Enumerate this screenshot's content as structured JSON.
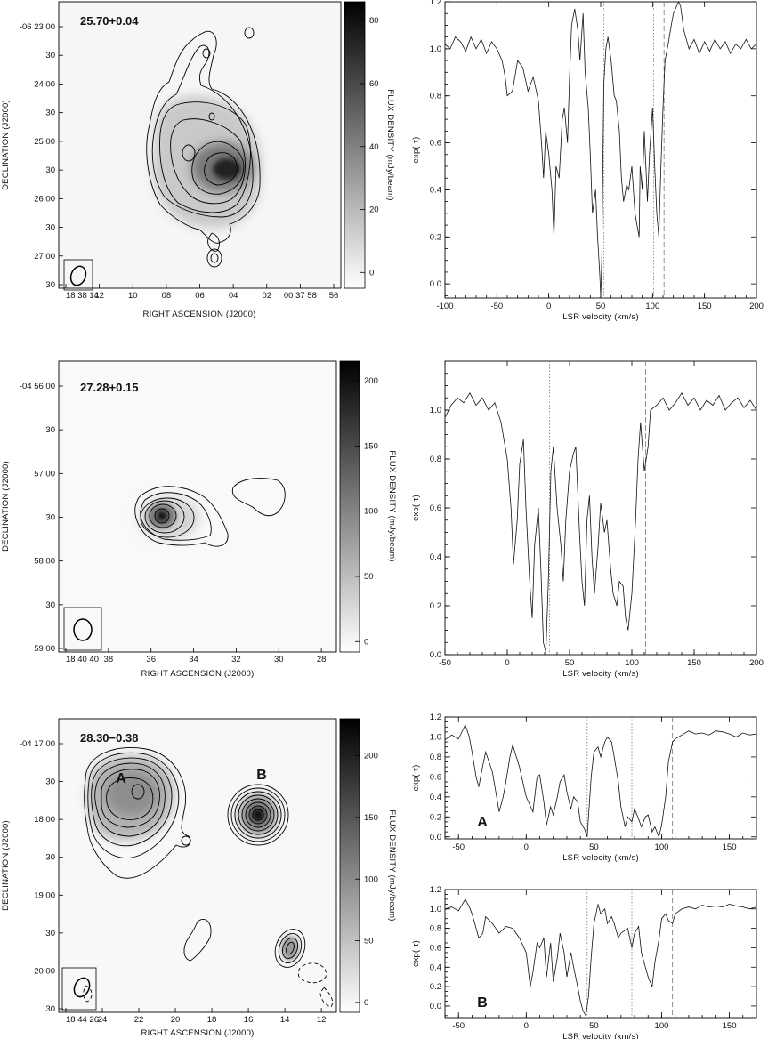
{
  "chart_data": [
    {
      "type": "heatmap",
      "id": "25.70+0.04",
      "title": "",
      "xlabel": "RIGHT ASCENSION (J2000)",
      "ylabel": "DECLINATION (J2000)",
      "colorbar_label": "FLUX DENSITY (mJy/beam)",
      "colorbar_range": [
        -5,
        86
      ],
      "colorbar_ticks": [
        "0",
        "20",
        "40",
        "60",
        "80"
      ],
      "x_tick_labels": [
        "18 38 14",
        "12",
        "10",
        "08",
        "06",
        "04",
        "02",
        "00 37 58",
        "56"
      ],
      "y_tick_labels": [
        "-06 23 00",
        "30",
        "24 00",
        "30",
        "25 00",
        "30",
        "26 00",
        "30",
        "27 00",
        "30"
      ],
      "peak_flux_mJy_per_beam": 82,
      "beam": "ellipse (lower-left box)"
    },
    {
      "type": "line",
      "source": "25.70+0.04",
      "xlabel": "LSR velocity (km/s)",
      "ylabel": "exp(-τ)",
      "xlim": [
        -100,
        200
      ],
      "ylim": [
        -0.06,
        1.2
      ],
      "x_ticks": [
        "-100",
        "-50",
        "0",
        "50",
        "100",
        "150",
        "200"
      ],
      "y_ticks": [
        "0.0",
        "0.2",
        "0.4",
        "0.6",
        "0.8",
        "1.0",
        "1.2"
      ],
      "dotted_lines_kms": [
        53,
        101
      ],
      "dashed_lines_kms": [
        111
      ],
      "series": [
        {
          "x": [
            -100,
            -95,
            -90,
            -85,
            -80,
            -75,
            -70,
            -65,
            -60,
            -55,
            -50,
            -45,
            -42,
            -40,
            -35,
            -30,
            -25,
            -20,
            -15,
            -10,
            -7,
            -5,
            -3,
            0,
            3,
            5,
            7,
            10,
            13,
            15,
            18,
            20,
            22,
            25,
            28,
            30,
            33,
            35,
            38,
            40,
            42,
            45,
            47,
            49,
            50,
            51,
            52,
            53,
            55,
            57,
            60,
            63,
            65,
            68,
            70,
            72,
            75,
            77,
            80,
            83,
            85,
            87,
            88,
            90,
            92,
            95,
            97,
            100,
            102,
            104,
            106,
            108,
            110,
            112,
            115,
            118,
            120,
            125,
            127,
            130,
            135,
            140,
            145,
            150,
            155,
            160,
            165,
            170,
            175,
            180,
            185,
            190,
            195,
            200
          ],
          "y": [
            1.02,
            1.0,
            1.05,
            1.03,
            0.99,
            1.05,
            1.0,
            1.04,
            0.98,
            1.03,
            1.0,
            0.95,
            0.88,
            0.8,
            0.82,
            0.95,
            0.92,
            0.82,
            0.88,
            0.78,
            0.6,
            0.45,
            0.65,
            0.55,
            0.4,
            0.2,
            0.5,
            0.45,
            0.7,
            0.75,
            0.6,
            0.88,
            1.1,
            1.17,
            1.08,
            0.95,
            1.15,
            0.9,
            0.75,
            0.55,
            0.3,
            0.4,
            0.2,
            0.05,
            -0.05,
            0.1,
            0.45,
            0.85,
            1.0,
            1.05,
            0.95,
            0.8,
            0.78,
            0.65,
            0.45,
            0.35,
            0.42,
            0.4,
            0.5,
            0.3,
            0.25,
            0.2,
            0.5,
            0.4,
            0.65,
            0.35,
            0.55,
            0.75,
            0.5,
            0.3,
            0.2,
            0.5,
            0.75,
            0.95,
            1.02,
            1.1,
            1.15,
            1.2,
            1.18,
            1.08,
            1.0,
            1.04,
            0.98,
            1.03,
            0.99,
            1.04,
            1.0,
            1.03,
            0.98,
            1.02,
            1.0,
            1.04,
            1.0,
            1.02
          ]
        }
      ]
    },
    {
      "type": "heatmap",
      "id": "27.28+0.15",
      "title": "",
      "xlabel": "RIGHT ASCENSION (J2000)",
      "ylabel": "DECLINATION (J2000)",
      "colorbar_label": "FLUX DENSITY (mJy/beam)",
      "colorbar_range": [
        -8,
        215
      ],
      "colorbar_ticks": [
        "0",
        "50",
        "100",
        "150",
        "200"
      ],
      "x_tick_labels": [
        "18 40 40",
        "38",
        "36",
        "34",
        "32",
        "30",
        "28"
      ],
      "y_tick_labels": [
        "-04 56 00",
        "30",
        "57 00",
        "30",
        "58 00",
        "30",
        "59 00"
      ],
      "peak_flux_mJy_per_beam": 210,
      "beam": "ellipse (lower-left box)"
    },
    {
      "type": "line",
      "source": "27.28+0.15",
      "xlabel": "LSR velocity (km/s)",
      "ylabel": "exp(-τ)",
      "xlim": [
        -50,
        200
      ],
      "ylim": [
        0.0,
        1.2
      ],
      "x_ticks": [
        "-50",
        "0",
        "50",
        "100",
        "150",
        "200"
      ],
      "y_ticks": [
        "0.0",
        "0.2",
        "0.4",
        "0.6",
        "0.8",
        "1.0"
      ],
      "dotted_lines_kms": [
        34
      ],
      "dashed_lines_kms": [
        111
      ],
      "series": [
        {
          "x": [
            -50,
            -45,
            -40,
            -35,
            -30,
            -25,
            -20,
            -15,
            -10,
            -5,
            0,
            3,
            5,
            8,
            10,
            13,
            15,
            18,
            20,
            22,
            25,
            27,
            29,
            31,
            33,
            35,
            37,
            40,
            43,
            45,
            47,
            50,
            53,
            55,
            58,
            60,
            62,
            64,
            66,
            68,
            70,
            73,
            75,
            78,
            80,
            83,
            85,
            88,
            90,
            93,
            95,
            97,
            100,
            103,
            105,
            107,
            110,
            113,
            115,
            120,
            125,
            130,
            135,
            140,
            145,
            150,
            155,
            160,
            165,
            170,
            175,
            180,
            185,
            190,
            195,
            200
          ],
          "y": [
            0.97,
            1.02,
            1.05,
            1.03,
            1.07,
            1.02,
            1.05,
            1.0,
            1.03,
            0.95,
            0.8,
            0.6,
            0.37,
            0.55,
            0.78,
            0.88,
            0.6,
            0.3,
            0.15,
            0.45,
            0.6,
            0.35,
            0.05,
            0.01,
            0.3,
            0.75,
            0.85,
            0.6,
            0.45,
            0.3,
            0.55,
            0.75,
            0.82,
            0.85,
            0.5,
            0.3,
            0.2,
            0.55,
            0.65,
            0.4,
            0.25,
            0.45,
            0.62,
            0.5,
            0.55,
            0.35,
            0.25,
            0.2,
            0.3,
            0.28,
            0.15,
            0.1,
            0.25,
            0.55,
            0.8,
            0.95,
            0.75,
            0.85,
            1.0,
            1.02,
            1.05,
            1.0,
            1.03,
            1.07,
            1.02,
            1.05,
            1.0,
            1.04,
            1.02,
            1.06,
            1.0,
            1.03,
            1.05,
            1.01,
            1.04,
            1.0
          ]
        }
      ]
    },
    {
      "type": "heatmap",
      "id": "28.30−0.38",
      "title": "",
      "xlabel": "RIGHT ASCENSION (J2000)",
      "ylabel": "DECLINATION (J2000)",
      "colorbar_label": "FLUX DENSITY (mJy/beam)",
      "colorbar_range": [
        -8,
        230
      ],
      "colorbar_ticks": [
        "0",
        "50",
        "100",
        "150",
        "200"
      ],
      "x_tick_labels": [
        "18 44 26",
        "24",
        "22",
        "20",
        "18",
        "16",
        "14",
        "12"
      ],
      "y_tick_labels": [
        "-04 17 00",
        "30",
        "18 00",
        "30",
        "19 00",
        "30",
        "20 00",
        "30"
      ],
      "component_labels": [
        "A",
        "B"
      ],
      "peak_flux_mJy_per_beam": 225,
      "beam": "ellipse (lower-left box)"
    },
    {
      "type": "line",
      "source": "28.30−0.38 A",
      "panel_label": "A",
      "xlabel": "LSR velocity (km/s)",
      "ylabel": "exp(-τ)",
      "xlim": [
        -60,
        170
      ],
      "ylim": [
        -0.02,
        1.2
      ],
      "x_ticks": [
        "-50",
        "0",
        "50",
        "100",
        "150"
      ],
      "y_ticks": [
        "0.0",
        "0.2",
        "0.4",
        "0.6",
        "0.8",
        "1.0",
        "1.2"
      ],
      "dotted_lines_kms": [
        45,
        78
      ],
      "dashed_lines_kms": [
        108
      ],
      "series": [
        {
          "x": [
            -60,
            -55,
            -50,
            -45,
            -42,
            -40,
            -37,
            -35,
            -33,
            -30,
            -25,
            -20,
            -17,
            -15,
            -12,
            -10,
            -5,
            0,
            5,
            8,
            10,
            13,
            15,
            18,
            20,
            23,
            25,
            28,
            30,
            33,
            35,
            38,
            40,
            43,
            45,
            48,
            50,
            53,
            55,
            58,
            60,
            63,
            65,
            68,
            70,
            73,
            75,
            78,
            80,
            83,
            85,
            88,
            90,
            93,
            95,
            98,
            100,
            103,
            105,
            108,
            110,
            115,
            120,
            125,
            130,
            135,
            140,
            145,
            150,
            155,
            160,
            165,
            170
          ],
          "y": [
            0.97,
            1.02,
            0.98,
            1.12,
            1.0,
            0.85,
            0.6,
            0.5,
            0.65,
            0.85,
            0.65,
            0.25,
            0.4,
            0.55,
            0.8,
            0.92,
            0.7,
            0.4,
            0.25,
            0.6,
            0.62,
            0.35,
            0.12,
            0.3,
            0.22,
            0.4,
            0.55,
            0.62,
            0.45,
            0.28,
            0.4,
            0.35,
            0.15,
            0.08,
            0.0,
            0.6,
            0.85,
            0.9,
            0.8,
            0.95,
            1.0,
            0.95,
            0.8,
            0.55,
            0.3,
            0.1,
            0.2,
            0.15,
            0.28,
            0.18,
            0.1,
            0.2,
            0.22,
            0.05,
            0.1,
            0.0,
            0.12,
            0.4,
            0.75,
            0.95,
            0.98,
            1.02,
            1.06,
            1.03,
            1.04,
            1.02,
            1.06,
            1.05,
            1.03,
            1.0,
            1.04,
            1.02,
            1.03
          ]
        }
      ]
    },
    {
      "type": "line",
      "source": "28.30−0.38 B",
      "panel_label": "B",
      "xlabel": "LSR velocity (km/s)",
      "ylabel": "exp(-τ)",
      "xlim": [
        -60,
        170
      ],
      "ylim": [
        -0.12,
        1.2
      ],
      "x_ticks": [
        "-50",
        "0",
        "50",
        "100",
        "150"
      ],
      "y_ticks": [
        "0.0",
        "0.2",
        "0.4",
        "0.6",
        "0.8",
        "1.0",
        "1.2"
      ],
      "dotted_lines_kms": [
        45,
        78
      ],
      "dashed_lines_kms": [
        108
      ],
      "series": [
        {
          "x": [
            -60,
            -55,
            -50,
            -45,
            -42,
            -40,
            -37,
            -35,
            -32,
            -30,
            -25,
            -20,
            -15,
            -10,
            -5,
            0,
            3,
            5,
            8,
            10,
            13,
            15,
            18,
            20,
            23,
            25,
            28,
            30,
            33,
            35,
            38,
            40,
            42,
            44,
            46,
            48,
            50,
            53,
            55,
            58,
            60,
            63,
            65,
            68,
            70,
            73,
            75,
            78,
            80,
            83,
            85,
            88,
            90,
            93,
            95,
            98,
            100,
            103,
            105,
            108,
            110,
            115,
            120,
            125,
            130,
            135,
            140,
            145,
            150,
            155,
            160,
            165,
            170
          ],
          "y": [
            1.0,
            1.02,
            0.98,
            1.1,
            1.02,
            0.95,
            0.8,
            0.7,
            0.75,
            0.92,
            0.85,
            0.75,
            0.82,
            0.8,
            0.7,
            0.55,
            0.2,
            0.35,
            0.65,
            0.6,
            0.7,
            0.3,
            0.65,
            0.25,
            0.5,
            0.75,
            0.55,
            0.3,
            0.55,
            0.4,
            0.2,
            0.05,
            -0.05,
            -0.1,
            0.1,
            0.5,
            0.85,
            1.05,
            0.95,
            1.0,
            0.85,
            0.92,
            0.85,
            0.7,
            0.75,
            0.78,
            0.8,
            0.6,
            0.75,
            0.82,
            0.55,
            0.4,
            0.3,
            0.2,
            0.45,
            0.68,
            0.9,
            0.95,
            0.88,
            0.85,
            0.95,
            1.0,
            1.02,
            1.0,
            1.04,
            1.02,
            1.03,
            1.02,
            1.05,
            1.03,
            1.02,
            1.0,
            1.02
          ]
        }
      ]
    }
  ]
}
